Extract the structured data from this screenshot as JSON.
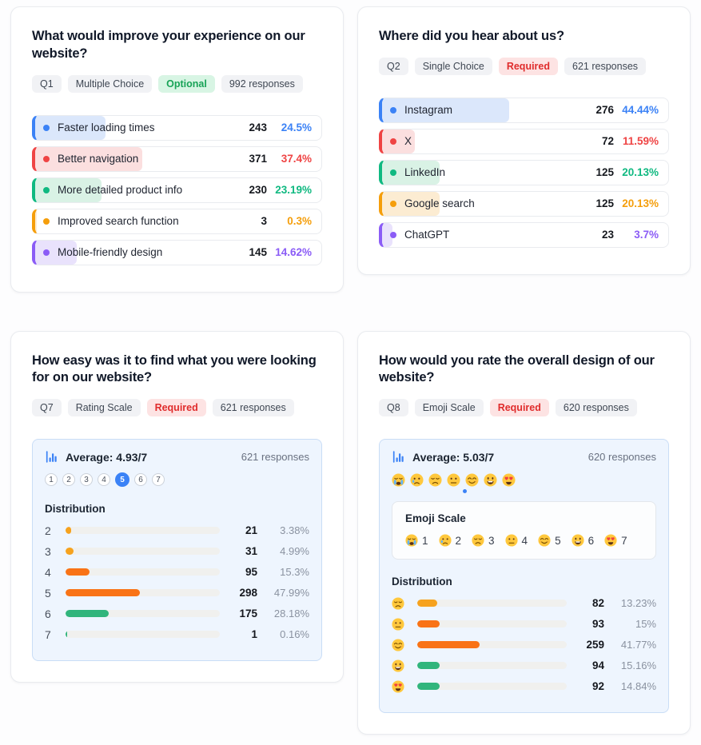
{
  "palette": {
    "blue": {
      "main": "#3b82f6",
      "tint": "#dbe7fb"
    },
    "red": {
      "main": "#ef4444",
      "tint": "#fbdfdf"
    },
    "green": {
      "main": "#10b981",
      "tint": "#d9f2e5"
    },
    "orange": {
      "main": "#f59e0b",
      "tint": "#fcecd2"
    },
    "purple": {
      "main": "#8b5cf6",
      "tint": "#e9e2fc"
    }
  },
  "bar_colors": {
    "amber": "#f6a21e",
    "orange": "#f97316",
    "green": "#31b57c"
  },
  "accent_blue": "#3b82f6",
  "cards": {
    "q1": {
      "title": "What would improve your experience on our website?",
      "badges": {
        "number": "Q1",
        "type": "Multiple Choice",
        "requirement": "Optional",
        "requirement_kind": "optional",
        "responses": "992 responses"
      },
      "options": [
        {
          "label": "Faster loading times",
          "count": "243",
          "pct": "24.5%",
          "pct_num": 24.5,
          "color": "blue"
        },
        {
          "label": "Better navigation",
          "count": "371",
          "pct": "37.4%",
          "pct_num": 37.4,
          "color": "red"
        },
        {
          "label": "More detailed product info",
          "count": "230",
          "pct": "23.19%",
          "pct_num": 23.19,
          "color": "green"
        },
        {
          "label": "Improved search function",
          "count": "3",
          "pct": "0.3%",
          "pct_num": 0.3,
          "color": "orange"
        },
        {
          "label": "Mobile-friendly design",
          "count": "145",
          "pct": "14.62%",
          "pct_num": 14.62,
          "color": "purple"
        }
      ]
    },
    "q2": {
      "title": "Where did you hear about us?",
      "badges": {
        "number": "Q2",
        "type": "Single Choice",
        "requirement": "Required",
        "requirement_kind": "required",
        "responses": "621 responses"
      },
      "options": [
        {
          "label": "Instagram",
          "count": "276",
          "pct": "44.44%",
          "pct_num": 44.44,
          "color": "blue"
        },
        {
          "label": "X",
          "count": "72",
          "pct": "11.59%",
          "pct_num": 11.59,
          "color": "red"
        },
        {
          "label": "LinkedIn",
          "count": "125",
          "pct": "20.13%",
          "pct_num": 20.13,
          "color": "green"
        },
        {
          "label": "Google search",
          "count": "125",
          "pct": "20.13%",
          "pct_num": 20.13,
          "color": "orange"
        },
        {
          "label": "ChatGPT",
          "count": "23",
          "pct": "3.7%",
          "pct_num": 3.7,
          "color": "purple"
        }
      ]
    },
    "q7": {
      "title": "How easy was it to find what you were looking for on our website?",
      "badges": {
        "number": "Q7",
        "type": "Rating Scale",
        "requirement": "Required",
        "requirement_kind": "required",
        "responses": "621 responses"
      },
      "summary": {
        "average_label": "Average: 4.93/7",
        "responses": "621 responses"
      },
      "rating_scale": {
        "min": 1,
        "max": 7,
        "active": 5
      },
      "distribution_title": "Distribution",
      "distribution": [
        {
          "label": "2",
          "count": "21",
          "pct": "3.38%",
          "pct_num": 3.38,
          "color": "amber"
        },
        {
          "label": "3",
          "count": "31",
          "pct": "4.99%",
          "pct_num": 4.99,
          "color": "amber"
        },
        {
          "label": "4",
          "count": "95",
          "pct": "15.3%",
          "pct_num": 15.3,
          "color": "orange"
        },
        {
          "label": "5",
          "count": "298",
          "pct": "47.99%",
          "pct_num": 47.99,
          "color": "orange"
        },
        {
          "label": "6",
          "count": "175",
          "pct": "28.18%",
          "pct_num": 28.18,
          "color": "green"
        },
        {
          "label": "7",
          "count": "1",
          "pct": "0.16%",
          "pct_num": 0.16,
          "color": "green"
        }
      ]
    },
    "q8": {
      "title": "How would you rate the overall design of our website?",
      "badges": {
        "number": "Q8",
        "type": "Emoji Scale",
        "requirement": "Required",
        "requirement_kind": "required",
        "responses": "620 responses"
      },
      "summary": {
        "average_label": "Average: 5.03/7",
        "responses": "620 responses"
      },
      "average_value": 5.03,
      "scale_max": 7,
      "emoji_row": [
        {
          "name": "sob",
          "char": "😭"
        },
        {
          "name": "cry",
          "char": "😢"
        },
        {
          "name": "sad",
          "char": "😞"
        },
        {
          "name": "neutral",
          "char": "😐"
        },
        {
          "name": "smile",
          "char": "😊"
        },
        {
          "name": "grin",
          "char": "😃"
        },
        {
          "name": "heart-eyes",
          "char": "😍"
        }
      ],
      "emoji_scale": {
        "title": "Emoji Scale",
        "items": [
          {
            "name": "sob",
            "char": "😭",
            "value": "1"
          },
          {
            "name": "cry",
            "char": "😢",
            "value": "2"
          },
          {
            "name": "sad",
            "char": "😞",
            "value": "3"
          },
          {
            "name": "neutral",
            "char": "😐",
            "value": "4"
          },
          {
            "name": "smile",
            "char": "😊",
            "value": "5"
          },
          {
            "name": "grin",
            "char": "😃",
            "value": "6"
          },
          {
            "name": "heart-eyes",
            "char": "😍",
            "value": "7"
          }
        ]
      },
      "distribution_title": "Distribution",
      "distribution": [
        {
          "emoji": "sad",
          "char": "😞",
          "count": "82",
          "pct": "13.23%",
          "pct_num": 13.23,
          "color": "amber"
        },
        {
          "emoji": "neutral",
          "char": "😐",
          "count": "93",
          "pct": "15%",
          "pct_num": 15,
          "color": "orange"
        },
        {
          "emoji": "smile",
          "char": "😊",
          "count": "259",
          "pct": "41.77%",
          "pct_num": 41.77,
          "color": "orange"
        },
        {
          "emoji": "grin",
          "char": "😃",
          "count": "94",
          "pct": "15.16%",
          "pct_num": 15.16,
          "color": "green"
        },
        {
          "emoji": "heart-eyes",
          "char": "😍",
          "count": "92",
          "pct": "14.84%",
          "pct_num": 14.84,
          "color": "green"
        }
      ]
    }
  }
}
